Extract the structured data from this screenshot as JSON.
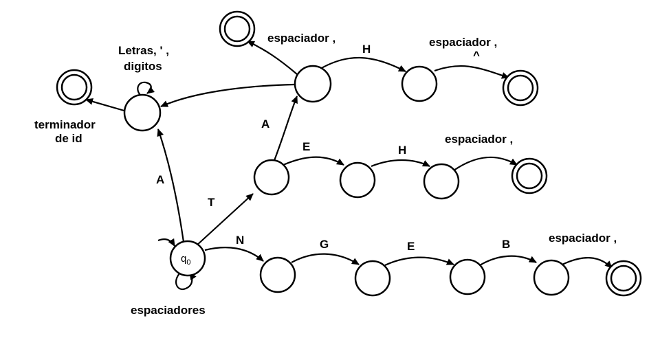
{
  "start_state": {
    "label": "q",
    "subscript": "0"
  },
  "labels": {
    "letras_line1": "Letras, ' ,",
    "letras_line2": "digitos",
    "terminador_line1": "terminador",
    "terminador_line2": "de id",
    "edge_a_up": "A",
    "edge_t": "T",
    "edge_a_mid": "A",
    "espaciador_top": "espaciador ,",
    "edge_h_top": "H",
    "espaciador_top_right": "espaciador ,",
    "caret": "^",
    "edge_e_mid": "E",
    "edge_h_mid": "H",
    "espaciador_mid": "espaciador ,",
    "edge_n": "N",
    "edge_g": "G",
    "edge_e_bot": "E",
    "edge_b": "B",
    "espaciador_bot": "espaciador ,",
    "espaciadores": "espaciadores"
  }
}
